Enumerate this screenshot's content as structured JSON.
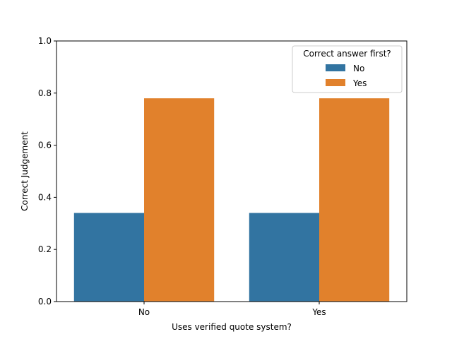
{
  "chart_data": {
    "type": "bar",
    "title": "",
    "xlabel": "Uses verified quote system?",
    "ylabel": "Correct Judgement",
    "categories": [
      "No",
      "Yes"
    ],
    "ylim": [
      0,
      1.0
    ],
    "yticks": [
      "0.0",
      "0.2",
      "0.4",
      "0.6",
      "0.8",
      "1.0"
    ],
    "grid": false,
    "legend": {
      "title": "Correct answer first?",
      "placement": "top-right"
    },
    "series": [
      {
        "name": "No",
        "color": "#3274a1",
        "values": [
          0.34,
          0.34
        ]
      },
      {
        "name": "Yes",
        "color": "#e1812c",
        "values": [
          0.78,
          0.78
        ]
      }
    ]
  }
}
